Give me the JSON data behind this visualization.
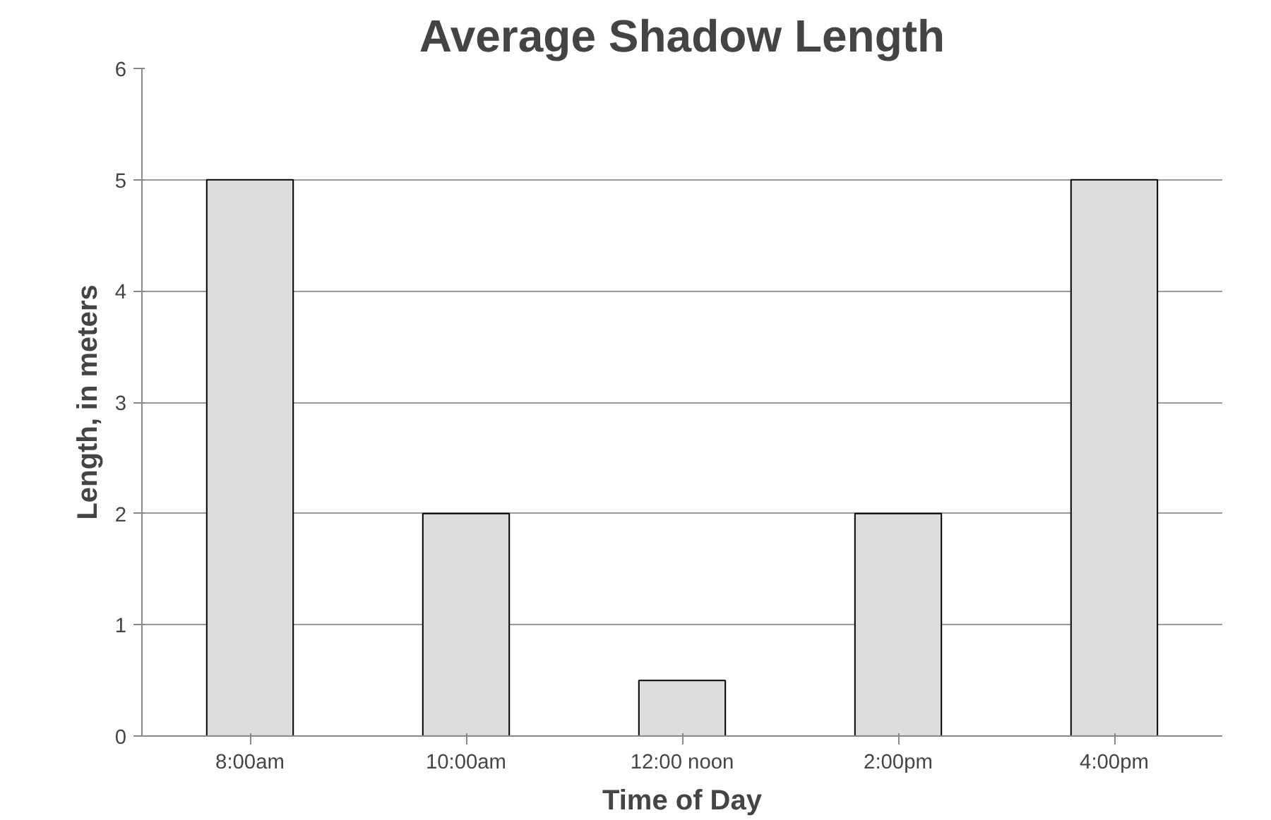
{
  "chart_data": {
    "type": "bar",
    "title": "Average Shadow Length",
    "xlabel": "Time of Day",
    "ylabel": "Length, in meters",
    "categories": [
      "8:00am",
      "10:00am",
      "12:00 noon",
      "2:00pm",
      "4:00pm"
    ],
    "values": [
      5,
      2,
      0.5,
      2,
      5
    ],
    "color": "#dcdcdc",
    "ylim": [
      0,
      6
    ],
    "yticks": [
      0,
      1,
      2,
      3,
      4,
      5,
      6
    ],
    "grid": "y"
  }
}
